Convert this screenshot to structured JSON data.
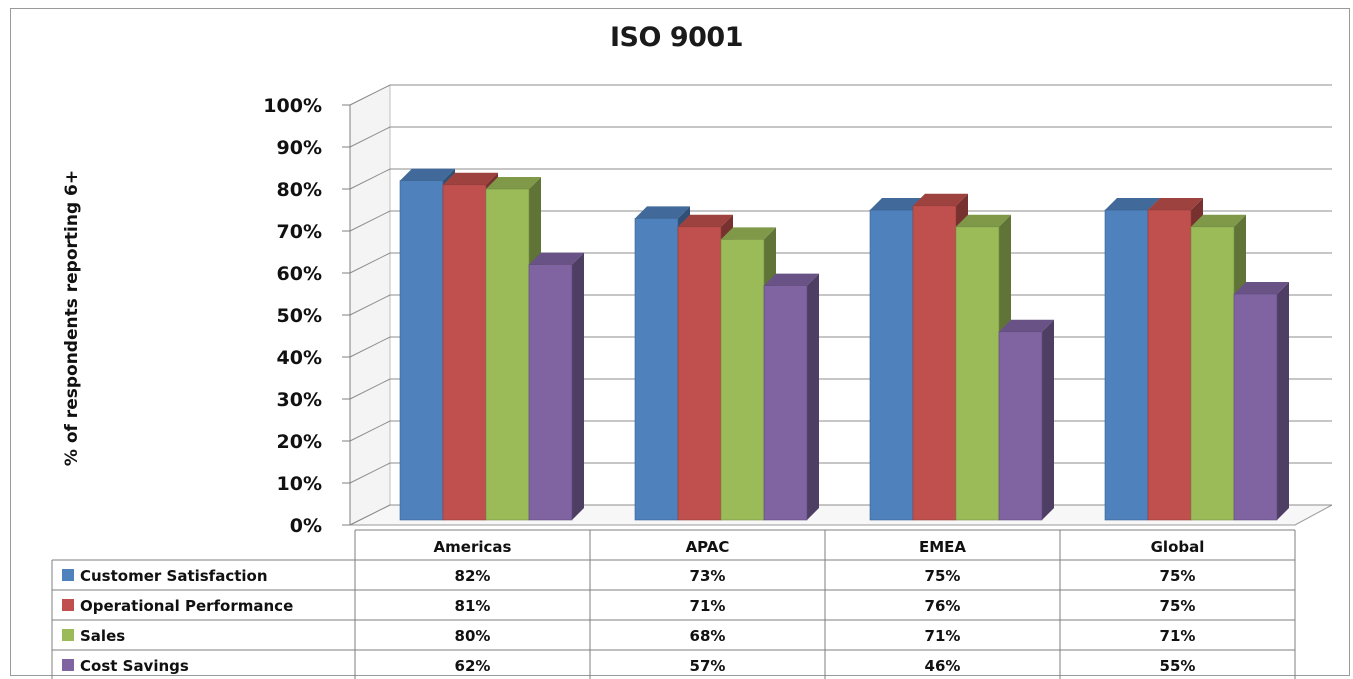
{
  "chart_data": {
    "type": "bar",
    "title": "ISO 9001",
    "ylabel": "% of respondents reporting 6+",
    "xlabel": "",
    "categories": [
      "Americas",
      "APAC",
      "EMEA",
      "Global"
    ],
    "ylim": [
      0,
      100
    ],
    "yticks": [
      "0%",
      "10%",
      "20%",
      "30%",
      "40%",
      "50%",
      "60%",
      "70%",
      "80%",
      "90%",
      "100%"
    ],
    "grid": true,
    "legend_position": "data table below chart",
    "series": [
      {
        "name": "Customer Satisfaction",
        "values": [
          82,
          73,
          75,
          75
        ],
        "labels": [
          "82%",
          "73%",
          "75%",
          "75%"
        ],
        "color": "#4F81BD"
      },
      {
        "name": "Operational Performance",
        "values": [
          81,
          71,
          76,
          75
        ],
        "labels": [
          "81%",
          "71%",
          "76%",
          "75%"
        ],
        "color": "#C0504D"
      },
      {
        "name": "Sales",
        "values": [
          80,
          68,
          71,
          71
        ],
        "labels": [
          "80%",
          "68%",
          "71%",
          "71%"
        ],
        "color": "#9BBB59"
      },
      {
        "name": "Cost Savings",
        "values": [
          62,
          57,
          46,
          55
        ],
        "labels": [
          "62%",
          "57%",
          "46%",
          "55%"
        ],
        "color": "#8064A2"
      }
    ]
  }
}
